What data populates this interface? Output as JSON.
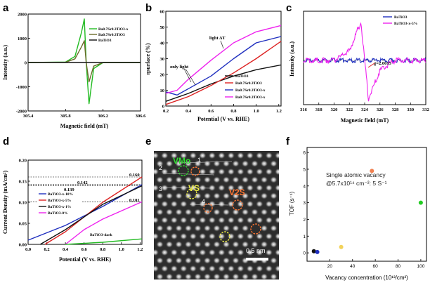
{
  "panel_labels": {
    "a": "a",
    "b": "b",
    "c": "c",
    "d": "d",
    "e": "e",
    "f": "f"
  },
  "colors": {
    "green": "#22bb22",
    "olive": "#6b6b2a",
    "black": "#111111",
    "red": "#dd2222",
    "blue": "#1f2fbf",
    "magenta": "#ee22ee"
  },
  "chart_data": [
    {
      "id": "a",
      "type": "line",
      "title": "",
      "xlabel": "Magnetic field (mT)",
      "ylabel": "Intensity (a.u.)",
      "xlim": [
        305.4,
        306.6
      ],
      "ylim": [
        -2000,
        2000
      ],
      "xticks": [
        "305.4",
        "305.8",
        "306.2",
        "306.6"
      ],
      "yticks": [
        "2000",
        "1000",
        "0",
        "-1000",
        "-2000"
      ],
      "series": [
        {
          "name": "Ba0.7Sr0.3TiO3-x",
          "color": "#22bb22",
          "x": [
            305.4,
            305.8,
            305.9,
            305.97,
            306.0,
            306.02,
            306.05,
            306.1,
            306.2,
            306.6
          ],
          "y": [
            0,
            20,
            250,
            1250,
            1800,
            0,
            -1700,
            -250,
            0,
            0
          ]
        },
        {
          "name": "Ba0.7Sr0.3TiO3",
          "color": "#6b6b2a",
          "x": [
            305.4,
            305.8,
            305.9,
            305.97,
            306.0,
            306.02,
            306.05,
            306.1,
            306.2,
            306.6
          ],
          "y": [
            0,
            10,
            150,
            650,
            900,
            0,
            -800,
            -150,
            0,
            0
          ]
        },
        {
          "name": "BaTiO3",
          "color": "#111111",
          "x": [
            305.4,
            306.6
          ],
          "y": [
            0,
            0
          ]
        }
      ]
    },
    {
      "id": "b",
      "type": "line",
      "xlabel": "Potential (V vs. RHE)",
      "ylabel": "ηsurface (%)",
      "xlim": [
        0.2,
        1.2
      ],
      "ylim": [
        0,
        60
      ],
      "xticks": [
        "0.2",
        "0.4",
        "0.6",
        "0.8",
        "1.0",
        "1.2"
      ],
      "yticks": [
        "0",
        "10",
        "20",
        "30",
        "40",
        "50",
        "60"
      ],
      "annotations": [
        "light ΔT",
        "only light"
      ],
      "series": [
        {
          "name": "BaTiO3",
          "color": "#111111",
          "x": [
            0.2,
            0.4,
            0.6,
            0.8,
            1.0,
            1.22
          ],
          "y": [
            3,
            8,
            14,
            19,
            23,
            26
          ]
        },
        {
          "name": "Ba0.7Sr0.3TiO3",
          "color": "#dd2222",
          "x": [
            0.2,
            0.4,
            0.6,
            0.8,
            1.0,
            1.22
          ],
          "y": [
            1,
            6,
            13,
            21,
            30,
            41
          ]
        },
        {
          "name": "Ba0.7Sr0.3TiO3-x",
          "color": "#1f2fbf",
          "x": [
            0.2,
            0.3,
            0.4,
            0.6,
            0.8,
            1.0,
            1.22
          ],
          "y": [
            9,
            7,
            11,
            19,
            30,
            40,
            44
          ]
        },
        {
          "name": "Ba0.7Sr0.3TiO3-x",
          "color": "#ee22ee",
          "x": [
            0.2,
            0.3,
            0.4,
            0.6,
            0.8,
            1.0,
            1.22
          ],
          "y": [
            8,
            10,
            17,
            29,
            40,
            47,
            51
          ]
        }
      ]
    },
    {
      "id": "c",
      "type": "line",
      "xlabel": "Magnetic field (mT)",
      "ylabel": "Intensity (a.u.)",
      "xlim": [
        316,
        332
      ],
      "xticks": [
        "316",
        "318",
        "320",
        "322",
        "324",
        "326",
        "328",
        "330",
        "332"
      ],
      "annotations": [
        "g=2.0015"
      ],
      "series": [
        {
          "name": "BaTiO3",
          "color": "#1f2fbf",
          "x": [
            316,
            324,
            332
          ],
          "y": [
            0,
            0,
            0
          ]
        },
        {
          "name": "BaTiO3-x-5%",
          "color": "#ee22ee",
          "x": [
            316,
            320,
            322,
            323.5,
            324,
            324.5,
            326,
            328,
            332
          ],
          "y": [
            0,
            0,
            0.25,
            1.0,
            0,
            -1.0,
            -0.25,
            0,
            0
          ]
        }
      ]
    },
    {
      "id": "d",
      "type": "line",
      "xlabel": "Potential (V vs. RHE)",
      "ylabel": "Current Density (mA/cm²)",
      "xlim": [
        0,
        1.2
      ],
      "ylim": [
        0,
        0.2
      ],
      "xticks": [
        "0.0",
        "0.2",
        "0.4",
        "0.6",
        "0.8",
        "1.0",
        "1.2"
      ],
      "yticks": [
        "0.00",
        "0.05",
        "0.10",
        "0.15",
        "0.20"
      ],
      "annotations": [
        "0.160",
        "0.142",
        "0.139",
        "0.101",
        "BaTiO3-dark"
      ],
      "series": [
        {
          "name": "BaTiO3-x-10%",
          "color": "#1f2fbf",
          "x": [
            0.0,
            0.4,
            0.8,
            1.22
          ],
          "y": [
            0.01,
            0.045,
            0.09,
            0.142
          ]
        },
        {
          "name": "BaTiO3-x-5%",
          "color": "#dd2222",
          "x": [
            0.18,
            0.4,
            0.8,
            1.22
          ],
          "y": [
            0.0,
            0.03,
            0.1,
            0.16
          ]
        },
        {
          "name": "BaTiO3-x-1%",
          "color": "#111111",
          "x": [
            0.13,
            0.4,
            0.8,
            1.22
          ],
          "y": [
            0.0,
            0.035,
            0.095,
            0.139
          ]
        },
        {
          "name": "BaTiO3-0%",
          "color": "#ee22ee",
          "x": [
            0.4,
            0.6,
            0.8,
            1.22
          ],
          "y": [
            0.0,
            0.035,
            0.06,
            0.101
          ]
        },
        {
          "name": "BaTiO3-dark",
          "color": "#22bb22",
          "x": [
            0.4,
            0.8,
            1.22
          ],
          "y": [
            0.0,
            0.005,
            0.013
          ]
        }
      ]
    },
    {
      "id": "f",
      "type": "scatter",
      "xlabel": "Vacancy concentration (10¹³/cm²)",
      "ylabel": "TOF (s⁻¹)",
      "xlim": [
        0,
        100
      ],
      "ylim": [
        0,
        6
      ],
      "xticks": [
        "20",
        "40",
        "60",
        "80",
        "100"
      ],
      "yticks": [
        "0",
        "1",
        "2",
        "3",
        "4",
        "5",
        "6"
      ],
      "annotation": "Single atomic vacancy",
      "annotation2": "@5.7x10¹⁴ cm⁻²: 5 S⁻¹",
      "points": [
        {
          "x": 6,
          "y": 0.1,
          "color": "#111111"
        },
        {
          "x": 9,
          "y": 0.05,
          "color": "#1f2fbf"
        },
        {
          "x": 30,
          "y": 0.35,
          "color": "#f2d25a"
        },
        {
          "x": 57,
          "y": 4.9,
          "color": "#f08050"
        },
        {
          "x": 100,
          "y": 3.0,
          "color": "#22cc22"
        }
      ]
    }
  ],
  "panel_a": {
    "legend": [
      "Ba0.7Sr0.3TiO3-x",
      "Ba0.7Sr0.3TiO3",
      "BaTiO3"
    ]
  },
  "panel_b": {
    "legend": [
      "BaTiO3",
      "Ba0.7Sr0.3TiO3",
      "Ba0.7Sr0.3TiO3-x",
      "Ba0.7Sr0.3TiO3-x"
    ]
  },
  "panel_c": {
    "legend": [
      "BaTiO3",
      "BaTiO3-x-5%"
    ]
  },
  "panel_d": {
    "legend": [
      "BaTiO3-x-10%",
      "BaTiO3-x-5%",
      "BaTiO3-x-1%",
      "BaTiO3-0%"
    ]
  },
  "panel_e": {
    "labels": {
      "v_mo": "VMo",
      "v_s": "VS",
      "v_2s": "V2S",
      "n1": "1",
      "n2": "2",
      "n3": "3",
      "n4": "4"
    },
    "scale": "0.5 nm"
  }
}
